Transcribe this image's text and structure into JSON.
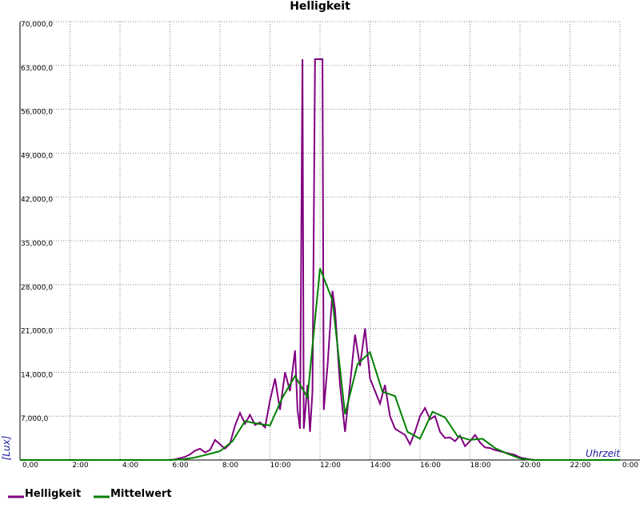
{
  "chart_data": {
    "type": "line",
    "title": "Helligkeit",
    "x_label": "Uhrzeit",
    "y_label": "[Lux]",
    "xlim": [
      0,
      24
    ],
    "ylim": [
      0,
      70000
    ],
    "grid": true,
    "xticks": [
      {
        "value": 0,
        "label": "0,00"
      },
      {
        "value": 2,
        "label": "2:00"
      },
      {
        "value": 4,
        "label": "4:00"
      },
      {
        "value": 6,
        "label": "6:00"
      },
      {
        "value": 8,
        "label": "8:00"
      },
      {
        "value": 10,
        "label": "10:00"
      },
      {
        "value": 12,
        "label": "12:00"
      },
      {
        "value": 14,
        "label": "14:00"
      },
      {
        "value": 16,
        "label": "16:00"
      },
      {
        "value": 18,
        "label": "18:00"
      },
      {
        "value": 20,
        "label": "20:00"
      },
      {
        "value": 22,
        "label": "22:00"
      },
      {
        "value": 24,
        "label": "0:00"
      }
    ],
    "yticks": [
      0,
      {
        "value": 7000,
        "label": "7,000,0"
      },
      {
        "value": 14000,
        "label": "14,000,0"
      },
      {
        "value": 21000,
        "label": "21,000,0"
      },
      {
        "value": 28000,
        "label": "28,000,0"
      },
      {
        "value": 35000,
        "label": "35,000,0"
      },
      {
        "value": 42000,
        "label": "42,000,0"
      },
      {
        "value": 49000,
        "label": "49,000,0"
      },
      {
        "value": 56000,
        "label": "56,000,0"
      },
      {
        "value": 63000,
        "label": "63,000,0"
      },
      {
        "value": 70000,
        "label": "70,000,0"
      }
    ],
    "series": [
      {
        "name": "Helligkeit",
        "color": "#800080",
        "x": [
          0,
          6,
          6.2,
          6.4,
          6.6,
          6.8,
          7.0,
          7.2,
          7.4,
          7.6,
          7.8,
          8.0,
          8.2,
          8.4,
          8.6,
          8.8,
          9.0,
          9.2,
          9.4,
          9.6,
          9.8,
          10.0,
          10.2,
          10.4,
          10.6,
          10.8,
          11.0,
          11.1,
          11.2,
          11.3,
          11.35,
          11.5,
          11.6,
          11.7,
          11.8,
          12.1,
          12.15,
          12.3,
          12.5,
          12.6,
          12.8,
          13.0,
          13.2,
          13.4,
          13.6,
          13.8,
          14.0,
          14.2,
          14.4,
          14.6,
          14.8,
          15.0,
          15.2,
          15.4,
          15.6,
          15.8,
          16.0,
          16.2,
          16.4,
          16.6,
          16.8,
          17.0,
          17.2,
          17.4,
          17.6,
          17.8,
          18.0,
          18.2,
          18.4,
          18.6,
          18.8,
          19.0,
          19.4,
          19.8,
          20.0,
          20.4,
          20.6,
          24
        ],
        "values": [
          0,
          0,
          100,
          300,
          500,
          900,
          1500,
          1800,
          1200,
          1600,
          3200,
          2500,
          1800,
          2600,
          5500,
          7500,
          5800,
          7200,
          5600,
          6000,
          5200,
          9500,
          13000,
          8000,
          14000,
          11000,
          17500,
          8000,
          5000,
          64000,
          5000,
          12000,
          4500,
          11000,
          64000,
          64000,
          8000,
          15000,
          27000,
          24000,
          12000,
          4500,
          12000,
          20000,
          15000,
          21000,
          13000,
          11000,
          9000,
          12000,
          7000,
          5000,
          4500,
          4000,
          2500,
          4500,
          7000,
          8300,
          6500,
          7000,
          4500,
          3500,
          3600,
          3000,
          3900,
          2200,
          3000,
          4000,
          2800,
          2000,
          1900,
          1600,
          1200,
          800,
          400,
          100,
          0,
          0
        ]
      },
      {
        "name": "Mittelwert",
        "color": "#008000",
        "x": [
          0,
          6,
          6.5,
          7,
          7.5,
          8,
          8.5,
          9,
          9.5,
          10,
          10.5,
          11,
          11.5,
          12,
          12.5,
          13,
          13.5,
          14,
          14.5,
          15,
          15.5,
          16,
          16.5,
          17,
          17.5,
          18,
          18.5,
          19,
          19.5,
          20,
          20.5,
          24
        ],
        "values": [
          0,
          0,
          100,
          400,
          900,
          1400,
          3000,
          6200,
          5800,
          5500,
          10000,
          13400,
          10000,
          30600,
          25500,
          7300,
          15300,
          17200,
          10900,
          10200,
          4500,
          3400,
          7700,
          6800,
          3800,
          3200,
          3400,
          1900,
          1000,
          250,
          0,
          0
        ]
      }
    ]
  }
}
